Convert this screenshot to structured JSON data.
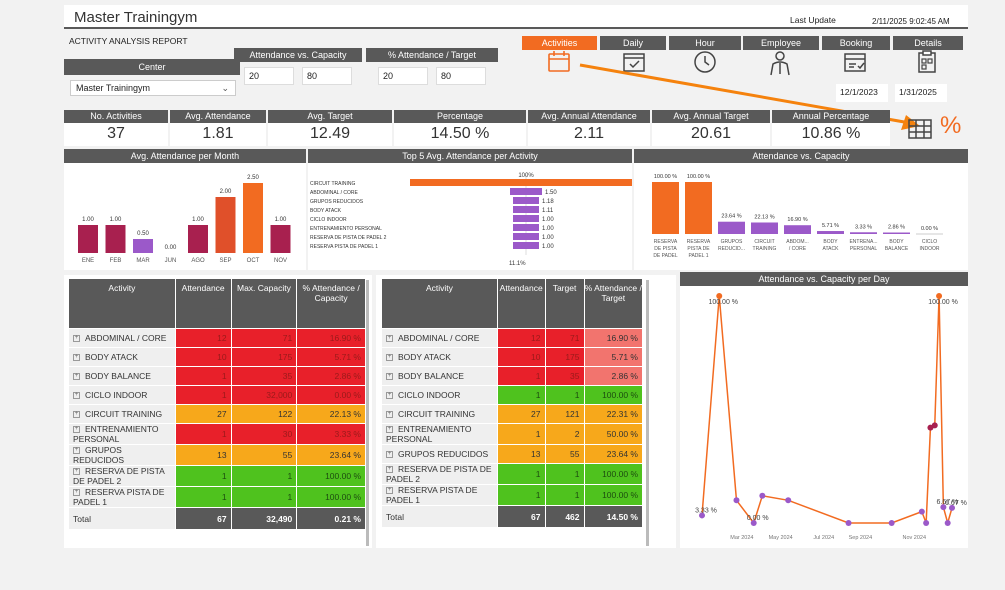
{
  "app": {
    "title": "Master Trainingym",
    "subtitle": "ACTIVITY ANALYSIS REPORT",
    "last_update_label": "Last Update",
    "last_update_value": "2/11/2025 9:02:45 AM"
  },
  "filters": {
    "center_label": "Center",
    "center_value": "Master Trainingym",
    "avc_label": "Attendance vs. Capacity",
    "avc_from": "20",
    "avc_to": "80",
    "pct_label": "% Attendance / Target",
    "pct_from": "20",
    "pct_to": "80",
    "date_from": "12/1/2023",
    "date_to": "1/31/2025"
  },
  "nav": {
    "tabs": [
      "Activities",
      "Daily",
      "Hour",
      "Employee",
      "Booking",
      "Details"
    ],
    "active": "Activities"
  },
  "kpis": [
    {
      "label": "No. Activities",
      "value": "37"
    },
    {
      "label": "Avg. Attendance",
      "value": "1.81"
    },
    {
      "label": "Avg. Target",
      "value": "12.49"
    },
    {
      "label": "Percentage",
      "value": "14.50 %"
    },
    {
      "label": "Avg. Annual Attendance",
      "value": "2.11"
    },
    {
      "label": "Avg. Annual Target",
      "value": "20.61"
    },
    {
      "label": "Annual Percentage",
      "value": "10.86 %"
    }
  ],
  "toggle_icons": [
    "table-icon",
    "percent-icon"
  ],
  "colors": {
    "orange": "#f26b21",
    "crimson": "#a8204f",
    "purple": "#9b59c9",
    "red": "#e8202a",
    "amber": "#f7a81b",
    "green": "#4fc21e",
    "dark": "#595959"
  },
  "chart_data": [
    {
      "type": "bar",
      "title": "Avg. Attendance per Month",
      "categories": [
        "ENE",
        "FEB",
        "MAR",
        "JUN",
        "AGO",
        "SEP",
        "OCT",
        "NOV"
      ],
      "values": [
        1.0,
        1.0,
        0.5,
        0.0,
        1.0,
        2.0,
        2.5,
        1.0
      ],
      "labels": [
        "1.00",
        "1.00",
        "0.50",
        "0.00",
        "1.00",
        "2.00",
        "2.50",
        "1.00"
      ],
      "colors": [
        "#a8204f",
        "#a8204f",
        "#9b59c9",
        "#9b59c9",
        "#a8204f",
        "#e0502a",
        "#f26b21",
        "#a8204f"
      ],
      "ylim": [
        0,
        2.5
      ]
    },
    {
      "type": "bar",
      "title": "Top 5 Avg. Attendance per Activity",
      "categories": [
        "CIRCUIT TRAINING",
        "ABDOMINAL / CORE",
        "GRUPOS REDUCIDOS",
        "BODY ATACK",
        "CICLO INDOOR",
        "ENTRENAMIENTO PERSONAL",
        "RESERVA DE PISTA DE PADEL 2",
        "RESERVA PISTA DE PADEL 1"
      ],
      "values": [
        100,
        1.5,
        1.18,
        1.11,
        1.0,
        1.0,
        1.0,
        1.0
      ],
      "labels": [
        "100%",
        "1.50",
        "1.18",
        "1.11",
        "1.00",
        "1.00",
        "1.00",
        "1.00"
      ],
      "footer": "11.1%"
    },
    {
      "type": "bar",
      "title": "Attendance vs. Capacity",
      "categories": [
        "RESERVA DE PISTA DE PADEL 2",
        "RESERVA PISTA DE PADEL 1",
        "GRUPOS REDUCID...",
        "CIRCUIT TRAINING",
        "ABDOM... / CORE",
        "BODY ATACK",
        "ENTRENA... PERSONAL",
        "BODY BALANCE",
        "CICLO INDOOR"
      ],
      "values": [
        100.0,
        100.0,
        23.64,
        22.13,
        16.9,
        5.71,
        3.33,
        2.86,
        0.0
      ],
      "labels": [
        "100.00 %",
        "100.00 %",
        "23.64 %",
        "22.13 %",
        "16.90 %",
        "5.71 %",
        "3.33 %",
        "2.86 %",
        "0.00 %"
      ],
      "ylim": [
        0,
        100
      ]
    },
    {
      "type": "line",
      "title": "Attendance vs. Capacity per Day",
      "x_ticks": [
        "Mar 2024",
        "May 2024",
        "Jul 2024",
        "Sep 2024",
        "Nov 2024"
      ],
      "x": [
        0,
        4,
        8,
        12,
        14,
        20,
        34,
        44,
        51,
        52,
        53,
        54,
        55,
        56,
        57,
        58
      ],
      "y": [
        3.33,
        100,
        10,
        0,
        12,
        10,
        0,
        0,
        5,
        0,
        42,
        43,
        100,
        7,
        0,
        6.67
      ],
      "point_labels": [
        {
          "i": 0,
          "text": "3.33 %"
        },
        {
          "i": 1,
          "text": "100.00 %"
        },
        {
          "i": 3,
          "text": "0.00 %"
        },
        {
          "i": 12,
          "text": "100.00 %"
        },
        {
          "i": 13,
          "text": "6.67 %"
        },
        {
          "i": 15,
          "text": "6.67 %"
        }
      ],
      "ylim": [
        0,
        100
      ]
    }
  ],
  "table_capacity": {
    "headers": [
      "Activity",
      "Attendance",
      "Max. Capacity",
      "% Attendance / Capacity"
    ],
    "rows": [
      {
        "activity": "ABDOMINAL / CORE",
        "attendance": "12",
        "capacity": "71",
        "pct": "16.90 %",
        "color": "red"
      },
      {
        "activity": "BODY ATACK",
        "attendance": "10",
        "capacity": "175",
        "pct": "5.71 %",
        "color": "red"
      },
      {
        "activity": "BODY BALANCE",
        "attendance": "1",
        "capacity": "35",
        "pct": "2.86 %",
        "color": "red"
      },
      {
        "activity": "CICLO INDOOR",
        "attendance": "1",
        "capacity": "32,000",
        "pct": "0.00 %",
        "color": "red"
      },
      {
        "activity": "CIRCUIT TRAINING",
        "attendance": "27",
        "capacity": "122",
        "pct": "22.13 %",
        "color": "orange"
      },
      {
        "activity": "ENTRENAMIENTO PERSONAL",
        "attendance": "1",
        "capacity": "30",
        "pct": "3.33 %",
        "color": "red"
      },
      {
        "activity": "GRUPOS REDUCIDOS",
        "attendance": "13",
        "capacity": "55",
        "pct": "23.64 %",
        "color": "orange"
      },
      {
        "activity": "RESERVA DE PISTA DE PADEL 2",
        "attendance": "1",
        "capacity": "1",
        "pct": "100.00 %",
        "color": "green"
      },
      {
        "activity": "RESERVA PISTA DE PADEL 1",
        "attendance": "1",
        "capacity": "1",
        "pct": "100.00 %",
        "color": "green"
      }
    ],
    "total": {
      "label": "Total",
      "attendance": "67",
      "capacity": "32,490",
      "pct": "0.21 %"
    }
  },
  "table_target": {
    "headers": [
      "Activity",
      "Attendance",
      "Target",
      "% Attendance / Target"
    ],
    "rows": [
      {
        "activity": "ABDOMINAL / CORE",
        "attendance": "12",
        "target": "71",
        "pct": "16.90 %",
        "color": "red",
        "pctcolor": "salmon"
      },
      {
        "activity": "BODY ATACK",
        "attendance": "10",
        "target": "175",
        "pct": "5.71 %",
        "color": "red",
        "pctcolor": "salmon"
      },
      {
        "activity": "BODY BALANCE",
        "attendance": "1",
        "target": "35",
        "pct": "2.86 %",
        "color": "red",
        "pctcolor": "salmon"
      },
      {
        "activity": "CICLO INDOOR",
        "attendance": "1",
        "target": "1",
        "pct": "100.00 %",
        "color": "green",
        "pctcolor": "green"
      },
      {
        "activity": "CIRCUIT TRAINING",
        "attendance": "27",
        "target": "121",
        "pct": "22.31 %",
        "color": "orange",
        "pctcolor": "orange"
      },
      {
        "activity": "ENTRENAMIENTO PERSONAL",
        "attendance": "1",
        "target": "2",
        "pct": "50.00 %",
        "color": "orange",
        "pctcolor": "orange"
      },
      {
        "activity": "GRUPOS REDUCIDOS",
        "attendance": "13",
        "target": "55",
        "pct": "23.64 %",
        "color": "orange",
        "pctcolor": "orange"
      },
      {
        "activity": "RESERVA DE PISTA DE PADEL 2",
        "attendance": "1",
        "target": "1",
        "pct": "100.00 %",
        "color": "green",
        "pctcolor": "green"
      },
      {
        "activity": "RESERVA PISTA DE PADEL 1",
        "attendance": "1",
        "target": "1",
        "pct": "100.00 %",
        "color": "green",
        "pctcolor": "green"
      }
    ],
    "total": {
      "label": "Total",
      "attendance": "67",
      "target": "462",
      "pct": "14.50 %"
    }
  }
}
